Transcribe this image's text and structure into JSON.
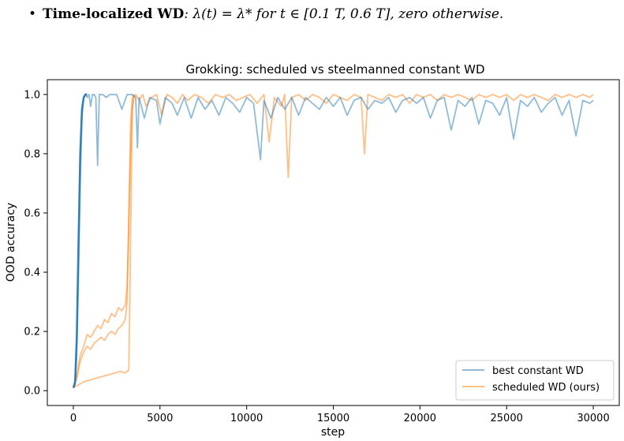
{
  "bullet": {
    "marker": "•",
    "term": "Time-localized WD",
    "formula_text": ": λ(t) = λ* for t ∈ [0.1 T, 0.6 T], zero otherwise."
  },
  "chart_data": {
    "type": "line",
    "title": "Grokking: scheduled vs steelmanned constant WD",
    "xlabel": "step",
    "ylabel": "OOD accuracy",
    "xlim": [
      -1500,
      31500
    ],
    "ylim": [
      -0.05,
      1.05
    ],
    "xticks": [
      0,
      5000,
      10000,
      15000,
      20000,
      25000,
      30000
    ],
    "yticks": [
      0.0,
      0.2,
      0.4,
      0.6,
      0.8,
      1.0
    ],
    "legend_position": "lower-right",
    "grid": false,
    "series": [
      {
        "name": "best constant WD",
        "color": "#1f77b4",
        "x": [
          0,
          100,
          200,
          300,
          400,
          500,
          600,
          700,
          800,
          900,
          1000,
          1100,
          1200,
          1300,
          1400,
          1500,
          1700,
          1900,
          2100,
          2300,
          2500,
          2800,
          3100,
          3400,
          3600,
          3700,
          3800,
          4100,
          4400,
          4800,
          5000,
          5300,
          5700,
          6000,
          6400,
          6800,
          7200,
          7600,
          8000,
          8400,
          8800,
          9200,
          9600,
          10000,
          10400,
          10800,
          11000,
          11400,
          11800,
          12200,
          12600,
          13000,
          13400,
          13800,
          14200,
          14600,
          15000,
          15400,
          15800,
          16200,
          16600,
          17000,
          17400,
          17800,
          18200,
          18600,
          19000,
          19400,
          19800,
          20200,
          20600,
          21000,
          21400,
          21800,
          22200,
          22600,
          23000,
          23400,
          23800,
          24200,
          24600,
          25000,
          25400,
          25800,
          26200,
          26600,
          27000,
          27400,
          27800,
          28200,
          28600,
          29000,
          29400,
          29800,
          30000
        ],
        "values": [
          0.01,
          0.02,
          0.12,
          0.38,
          0.7,
          0.92,
          0.99,
          1.0,
          0.99,
          1.0,
          0.96,
          1.0,
          1.0,
          0.99,
          0.76,
          1.0,
          1.0,
          0.99,
          1.0,
          1.0,
          1.0,
          0.95,
          1.0,
          1.0,
          0.99,
          0.82,
          0.99,
          0.92,
          0.99,
          0.98,
          0.9,
          0.99,
          0.97,
          0.93,
          0.99,
          0.92,
          0.99,
          0.95,
          0.98,
          0.93,
          0.99,
          0.97,
          0.94,
          0.99,
          0.97,
          0.78,
          0.98,
          0.92,
          0.99,
          0.95,
          0.99,
          0.93,
          0.99,
          0.97,
          0.95,
          0.99,
          0.96,
          0.99,
          0.93,
          0.98,
          0.99,
          0.95,
          0.98,
          0.97,
          0.99,
          0.94,
          0.98,
          0.99,
          0.97,
          0.99,
          0.92,
          0.98,
          0.99,
          0.88,
          0.98,
          0.96,
          0.99,
          0.9,
          0.98,
          0.97,
          0.93,
          0.99,
          0.85,
          0.98,
          0.96,
          0.99,
          0.94,
          0.97,
          0.99,
          0.93,
          0.98,
          0.86,
          0.98,
          0.97,
          0.98
        ]
      },
      {
        "name": "scheduled WD (ours)",
        "color": "#ff7f0e",
        "x": [
          0,
          200,
          400,
          600,
          800,
          1000,
          1200,
          1400,
          1600,
          1800,
          2000,
          2200,
          2400,
          2600,
          2800,
          3000,
          3100,
          3200,
          3300,
          3400,
          3500,
          3600,
          3800,
          4000,
          4200,
          4500,
          4800,
          5100,
          5400,
          5700,
          6000,
          6300,
          6600,
          7000,
          7400,
          7800,
          8200,
          8600,
          9000,
          9400,
          9800,
          10200,
          10600,
          11000,
          11300,
          11600,
          12000,
          12200,
          12400,
          12600,
          13000,
          13400,
          13800,
          14200,
          14600,
          15000,
          15400,
          15800,
          16200,
          16600,
          16800,
          17000,
          17400,
          17800,
          18200,
          18600,
          19000,
          19400,
          19800,
          20200,
          20600,
          21000,
          21400,
          21800,
          22200,
          22600,
          23000,
          23400,
          23800,
          24200,
          24600,
          25000,
          25400,
          25800,
          26200,
          26600,
          27000,
          27400,
          27800,
          28200,
          28600,
          29000,
          29400,
          29800,
          30000
        ],
        "values": [
          0.01,
          0.05,
          0.12,
          0.15,
          0.19,
          0.18,
          0.2,
          0.22,
          0.21,
          0.24,
          0.23,
          0.26,
          0.25,
          0.28,
          0.27,
          0.29,
          0.35,
          0.55,
          0.8,
          0.95,
          0.99,
          1.0,
          0.98,
          1.0,
          0.96,
          0.99,
          1.0,
          0.93,
          1.0,
          0.99,
          0.97,
          1.0,
          0.98,
          1.0,
          0.99,
          0.97,
          1.0,
          0.99,
          1.0,
          0.98,
          0.99,
          1.0,
          0.97,
          1.0,
          0.84,
          0.99,
          0.96,
          1.0,
          0.72,
          0.99,
          1.0,
          0.98,
          1.0,
          0.99,
          0.97,
          1.0,
          0.99,
          0.98,
          1.0,
          0.99,
          0.8,
          1.0,
          0.99,
          0.98,
          1.0,
          0.99,
          1.0,
          0.97,
          1.0,
          0.99,
          1.0,
          0.98,
          1.0,
          0.99,
          1.0,
          0.99,
          0.98,
          1.0,
          0.99,
          1.0,
          0.99,
          1.0,
          0.98,
          1.0,
          0.99,
          1.0,
          0.99,
          0.98,
          1.0,
          0.99,
          1.0,
          0.99,
          1.0,
          0.99,
          1.0
        ]
      },
      {
        "name": "",
        "color": "#ff7f0e",
        "x": [
          0,
          200,
          400,
          600,
          800,
          1000,
          1200,
          1400,
          1600,
          1800,
          2000,
          2200,
          2400,
          2600,
          2800,
          3000,
          3100,
          3200,
          3300,
          3400,
          3500
        ],
        "values": [
          0.01,
          0.04,
          0.1,
          0.13,
          0.15,
          0.14,
          0.16,
          0.17,
          0.18,
          0.17,
          0.19,
          0.2,
          0.19,
          0.21,
          0.22,
          0.24,
          0.3,
          0.6,
          0.9,
          0.99,
          1.0
        ]
      },
      {
        "name": "",
        "color": "#ff7f0e",
        "x": [
          0,
          300,
          600,
          900,
          1200,
          1500,
          1800,
          2100,
          2400,
          2700,
          3000,
          3200,
          3300,
          3400,
          3500
        ],
        "values": [
          0.01,
          0.02,
          0.03,
          0.035,
          0.04,
          0.045,
          0.05,
          0.055,
          0.06,
          0.065,
          0.06,
          0.07,
          0.5,
          0.95,
          1.0
        ]
      },
      {
        "name": "",
        "color": "#1f77b4",
        "x": [
          0,
          100,
          200,
          300,
          400,
          500,
          600,
          700,
          800
        ],
        "values": [
          0.01,
          0.03,
          0.18,
          0.5,
          0.8,
          0.95,
          0.99,
          1.0,
          1.0
        ]
      }
    ]
  }
}
